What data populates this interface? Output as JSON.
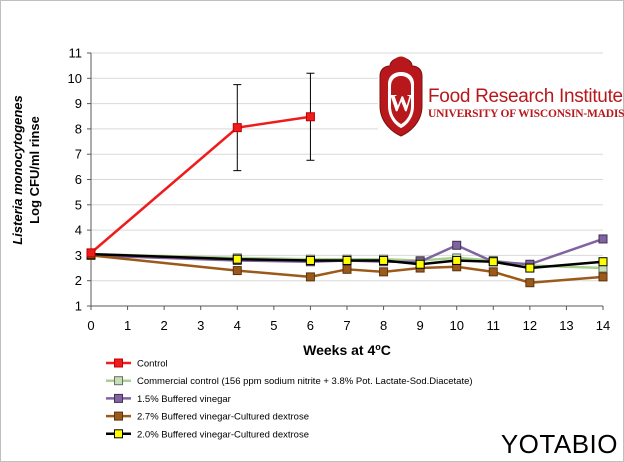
{
  "chart_data": {
    "type": "line",
    "title": "",
    "xlabel": "Weeks at 4oC",
    "ylabel_line1": "Listeria monocytogenes",
    "ylabel_line2": "Log CFU/ml rinse",
    "xlim": [
      0,
      14
    ],
    "ylim": [
      1,
      11
    ],
    "x_ticks": [
      0,
      1,
      2,
      3,
      4,
      5,
      6,
      7,
      8,
      9,
      10,
      11,
      12,
      13,
      14
    ],
    "y_ticks": [
      1,
      2,
      3,
      4,
      5,
      6,
      7,
      8,
      9,
      10,
      11
    ],
    "grid": "horizontal",
    "legend_position": "bottom",
    "series": [
      {
        "name": "Control",
        "color": "#ee1c1c",
        "marker_fill": "#ee1c1c",
        "marker_edge": "#c00000",
        "x": [
          0,
          4,
          6
        ],
        "y": [
          3.1,
          8.05,
          8.48
        ],
        "error": [
          0,
          1.7,
          1.72
        ]
      },
      {
        "name": "Commercial control (156 ppm sodium nitrite + 3.8% Pot. Lactate-Sod.Diacetate)",
        "color": "#a9d18e",
        "marker_fill": "#c5e0b4",
        "marker_edge": "#6b6b6b",
        "x": [
          0,
          4,
          6,
          7,
          8,
          9,
          10,
          11,
          12,
          14
        ],
        "y": [
          3.05,
          2.9,
          2.85,
          2.85,
          2.85,
          2.8,
          2.9,
          2.8,
          2.6,
          2.5
        ]
      },
      {
        "name": "1.5% Buffered vinegar",
        "color": "#8064a2",
        "marker_fill": "#8064a2",
        "marker_edge": "#3f3151",
        "x": [
          0,
          4,
          6,
          7,
          8,
          9,
          10,
          11,
          12,
          14
        ],
        "y": [
          3.0,
          2.8,
          2.75,
          2.8,
          2.75,
          2.75,
          3.4,
          2.75,
          2.65,
          3.65
        ]
      },
      {
        "name": "2.7% Buffered vinegar-Cultured dextrose",
        "color": "#9b5a1a",
        "marker_fill": "#9b5a1a",
        "marker_edge": "#5a3410",
        "x": [
          0,
          4,
          6,
          7,
          8,
          9,
          10,
          11,
          12,
          14
        ],
        "y": [
          3.0,
          2.4,
          2.15,
          2.45,
          2.35,
          2.5,
          2.55,
          2.35,
          1.92,
          2.15
        ]
      },
      {
        "name": "2.0% Buffered vinegar-Cultured dextrose",
        "color": "#000000",
        "marker_fill": "#ffff00",
        "marker_edge": "#000000",
        "x": [
          0,
          4,
          6,
          7,
          8,
          9,
          10,
          11,
          12,
          14
        ],
        "y": [
          3.05,
          2.85,
          2.8,
          2.8,
          2.8,
          2.65,
          2.8,
          2.75,
          2.5,
          2.75
        ]
      }
    ]
  },
  "logo": {
    "title": "Food Research Institute",
    "subtitle": "UNIVERSITY OF WISCONSIN-MADISON",
    "crest_letter": "W",
    "color": "#b8181c"
  },
  "watermark": "YOTABIO"
}
